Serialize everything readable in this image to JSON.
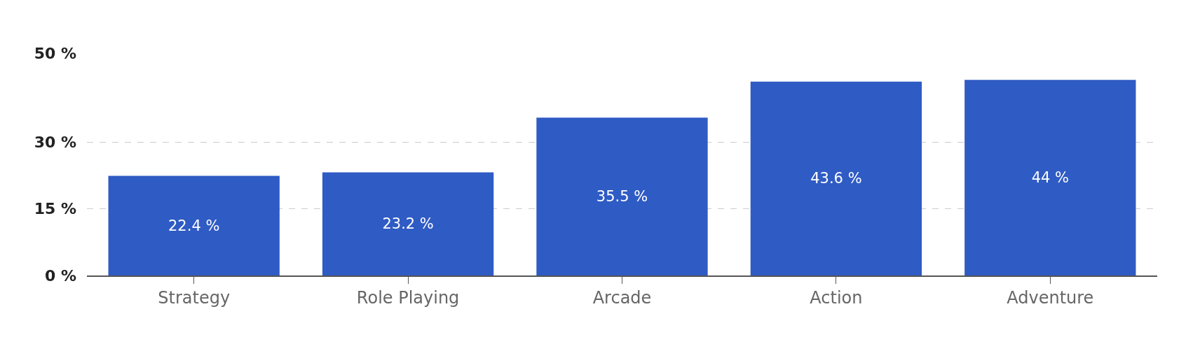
{
  "chart_data": {
    "type": "bar",
    "categories": [
      "Strategy",
      "Role Playing",
      "Arcade",
      "Action",
      "Adventure"
    ],
    "values": [
      22.4,
      23.2,
      35.5,
      43.6,
      44
    ],
    "value_labels": [
      "22.4 %",
      "23.2 %",
      "35.5 %",
      "43.6 %",
      "44 %"
    ],
    "color": "#2f5bc4",
    "ylim": [
      0,
      50
    ],
    "yticks": [
      {
        "value": 0,
        "label": "0 %"
      },
      {
        "value": 15,
        "label": "15 %"
      },
      {
        "value": 30,
        "label": "30 %"
      },
      {
        "value": 50,
        "label": "50 %"
      }
    ],
    "grid": "y"
  }
}
